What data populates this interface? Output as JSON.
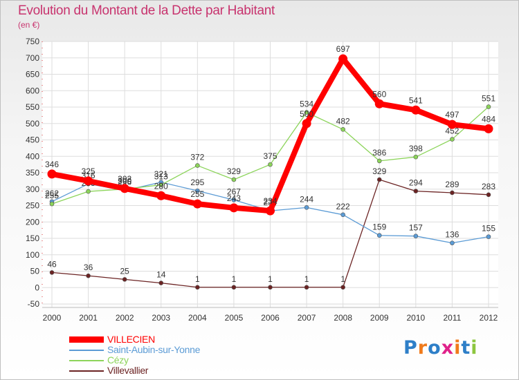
{
  "title": "Evolution du Montant de la Dette par Habitant",
  "unit": "(en €)",
  "logo": {
    "text": "Proxiti",
    "colors": [
      "#2e7fc8",
      "#f07b1c",
      "#2e7fc8",
      "#e0218a",
      "#f07b1c",
      "#2e7fc8",
      "#8dc63f"
    ]
  },
  "chart_data": {
    "type": "line",
    "x": [
      "2000",
      "2001",
      "2002",
      "2003",
      "2004",
      "2005",
      "2006",
      "2007",
      "2008",
      "2009",
      "2010",
      "2011",
      "2012"
    ],
    "ylim": [
      -50,
      750
    ],
    "yticks": [
      -50,
      0,
      50,
      100,
      150,
      200,
      250,
      300,
      350,
      400,
      450,
      500,
      550,
      600,
      650,
      700,
      750
    ],
    "grid": true,
    "legend": "bottom-left",
    "series": [
      {
        "name": "Villevallier",
        "color": "#6b2323",
        "values": [
          46,
          36,
          25,
          14,
          1,
          1,
          1,
          1,
          1,
          329,
          294,
          289,
          283
        ]
      },
      {
        "name": "Saint-Aubin-sur-Yonne",
        "color": "#5b9bd5",
        "values": [
          262,
          316,
          296,
          321,
          295,
          267,
          234,
          244,
          222,
          159,
          157,
          136,
          155
        ]
      },
      {
        "name": "Cézy",
        "color": "#8cd45a",
        "values": [
          255,
          293,
          300,
          313,
          372,
          329,
          375,
          534,
          482,
          386,
          398,
          452,
          551
        ]
      },
      {
        "name": "VILLECIEN",
        "color": "#ff0000",
        "values": [
          346,
          325,
          302,
          280,
          255,
          243,
          234,
          500,
          697,
          560,
          541,
          497,
          484
        ]
      }
    ]
  }
}
